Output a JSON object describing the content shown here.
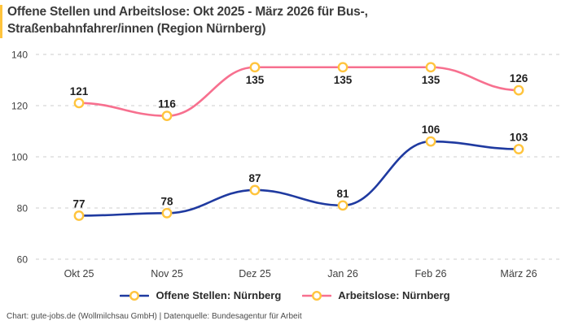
{
  "title": "Offene Stellen und Arbeitslose: Okt 2025 - März 2026 für Bus-, Straßenbahnfahrer/innen (Region Nürnberg)",
  "footer": "Chart: gute-jobs.de (Wollmilchsau GmbH) | Datenquelle: Bundesagentur für Arbeit",
  "colors": {
    "accent_bar": "#FFC43D",
    "grid": "#CCCCCC",
    "series_open_positions": "#1F3AA0",
    "series_unemployed": "#F7708F",
    "marker_stroke": "#FFC43D",
    "marker_fill": "#FFFFFF"
  },
  "chart_data": {
    "type": "line",
    "title": "Offene Stellen und Arbeitslose: Okt 2025 - März 2026 für Bus-, Straßenbahnfahrer/innen (Region Nürnberg)",
    "categories": [
      "Okt 25",
      "Nov 25",
      "Dez 25",
      "Jan 26",
      "Feb 26",
      "März 26"
    ],
    "series": [
      {
        "name": "Offene Stellen: Nürnberg",
        "color": "#1F3AA0",
        "values": [
          77,
          78,
          87,
          81,
          106,
          103
        ],
        "label_below": [
          false,
          false,
          false,
          false,
          false,
          false
        ]
      },
      {
        "name": "Arbeitslose: Nürnberg",
        "color": "#F7708F",
        "values": [
          121,
          116,
          135,
          135,
          135,
          126
        ],
        "label_below": [
          false,
          false,
          true,
          true,
          true,
          false
        ]
      }
    ],
    "ylim": [
      60,
      140
    ],
    "yticks": [
      60,
      80,
      100,
      120,
      140
    ],
    "grid": "horizontal-dashed",
    "legend_position": "bottom",
    "marker": {
      "shape": "circle",
      "stroke": "#FFC43D",
      "fill": "#FFFFFF"
    }
  }
}
